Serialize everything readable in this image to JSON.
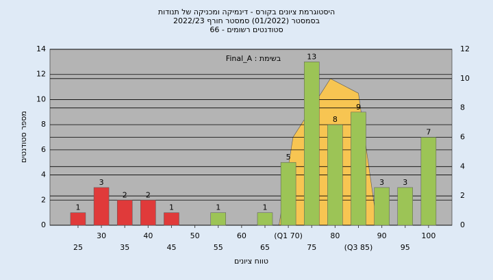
{
  "chart_data": {
    "type": "bar",
    "title": [
      "היסטוגרמת ציונים בקורס - דינמיקה ומכניקה של תנודות",
      "בסמסטר  (01/2022)  סמסטר חורף 2022/23",
      "סטודנטים רשומים - 66"
    ],
    "annotation": "Final_A : בשימת",
    "y_label": "מספר סטודנטים",
    "x_label": "טווח ציונים",
    "x": [
      25,
      30,
      35,
      40,
      45,
      50,
      55,
      60,
      65,
      70,
      75,
      80,
      85,
      90,
      95,
      100
    ],
    "values": [
      1,
      3,
      2,
      2,
      1,
      null,
      1,
      null,
      1,
      5,
      13,
      8,
      9,
      3,
      3,
      7
    ],
    "colors": [
      "#e03a3a",
      "#e03a3a",
      "#e03a3a",
      "#e03a3a",
      "#e03a3a",
      "#e03a3a",
      "#9cc456",
      "#9cc456",
      "#9cc456",
      "#9cc456",
      "#9cc456",
      "#9cc456",
      "#9cc456",
      "#9cc456",
      "#9cc456",
      "#9cc456"
    ],
    "xlim": [
      19,
      105
    ],
    "xticks": [
      25,
      30,
      35,
      40,
      45,
      50,
      55,
      60,
      65,
      {
        "value": 70,
        "label": "(Q1 70)"
      },
      75,
      80,
      {
        "value": 85,
        "label": "(Q3 85)"
      },
      90,
      95,
      100
    ],
    "ylim": [
      0,
      14
    ],
    "yticks": [
      0,
      2,
      4,
      6,
      8,
      10,
      12,
      14
    ],
    "y2lim": [
      0,
      12
    ],
    "y2ticks": [
      0,
      2,
      4,
      6,
      8,
      10,
      12
    ],
    "curve": {
      "color": "#f7c552",
      "axis": "y2",
      "x": [
        68,
        71,
        79,
        85,
        89
      ],
      "values": [
        0,
        6,
        10,
        9,
        0
      ]
    },
    "grid": true
  }
}
